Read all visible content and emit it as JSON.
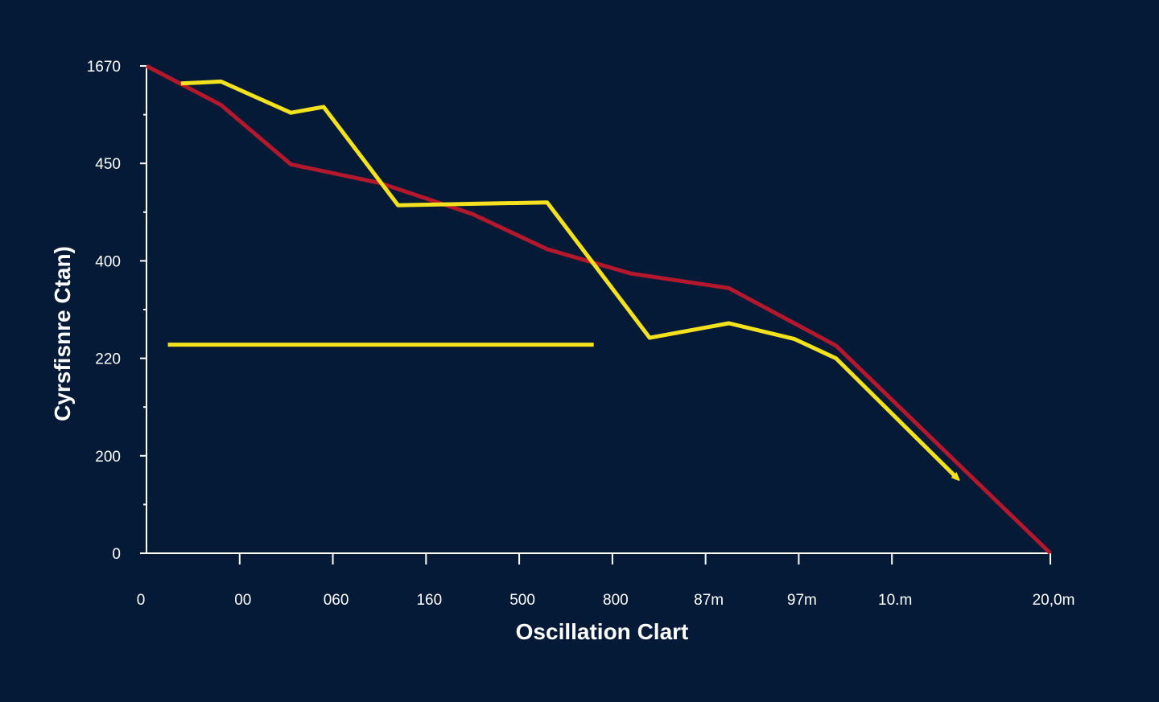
{
  "colors": {
    "background": "#041a36",
    "axis": "#ffffff",
    "red_series": "#b4182c",
    "yellow_series": "#f4e21e"
  },
  "chart_data": {
    "type": "line",
    "title": "",
    "xlabel": "Oscillation Clart",
    "ylabel": "Cyrsfisnre Ctan)",
    "x_tick_labels": [
      "0",
      "00",
      "060",
      "160",
      "500",
      "800",
      "87m",
      "97m",
      "10.m",
      "20,0m"
    ],
    "y_tick_labels": [
      "0",
      "200",
      "220",
      "400",
      "450",
      "1670"
    ],
    "xlim": [
      0,
      9.7
    ],
    "ylim": [
      0,
      5
    ],
    "series": [
      {
        "name": "red",
        "color": "#b4182c",
        "x": [
          0,
          0.8,
          1.55,
          2.5,
          3.5,
          4.3,
          5.2,
          6.25,
          7.4,
          9.7
        ],
        "y": [
          5.0,
          4.6,
          3.99,
          3.8,
          3.48,
          3.12,
          2.87,
          2.72,
          2.13,
          0.0
        ]
      },
      {
        "name": "yellow",
        "color": "#f4e21e",
        "x": [
          0.37,
          0.8,
          1.55,
          1.9,
          2.7,
          4.3,
          5.4,
          6.25,
          6.95,
          7.4,
          8.7
        ],
        "y": [
          4.82,
          4.84,
          4.52,
          4.58,
          3.57,
          3.6,
          2.21,
          2.36,
          2.2,
          2.0,
          0.77
        ],
        "arrow_end": true
      },
      {
        "name": "yellow-baseline",
        "color": "#f4e21e",
        "x": [
          0.23,
          4.8
        ],
        "y": [
          2.14,
          2.14
        ]
      }
    ]
  }
}
